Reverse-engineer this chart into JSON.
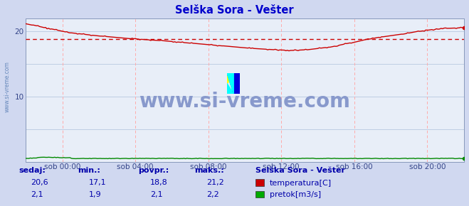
{
  "title": "Selška Sora - Vešter",
  "title_color": "#0000cc",
  "bg_color": "#d0d8f0",
  "plot_bg_color": "#e8eef8",
  "grid_color_h": "#b8c8e0",
  "grid_color_v": "#ffaaaa",
  "x_min": 0,
  "x_max": 288,
  "y_min": 0,
  "y_max": 22,
  "y_ticks": [
    10,
    20
  ],
  "x_tick_labels": [
    "sob 00:00",
    "sob 04:00",
    "sob 08:00",
    "sob 12:00",
    "sob 16:00",
    "sob 20:00"
  ],
  "x_tick_positions": [
    24,
    72,
    120,
    168,
    216,
    264
  ],
  "avg_line_y": 18.8,
  "avg_line_color": "#cc0000",
  "temp_line_color": "#cc0000",
  "flow_line_color": "#008800",
  "watermark_text": "www.si-vreme.com",
  "watermark_color": "#8899cc",
  "sidebar_text": "www.si-vreme.com",
  "sidebar_color": "#6688bb",
  "tick_color": "#334488",
  "footer_label_color": "#0000aa",
  "footer_value_color": "#0000aa",
  "legend_title": "Selška Sora - Vešter",
  "legend_title_color": "#0000aa",
  "legend_entries": [
    "temperatura[C]",
    "pretok[m3/s]"
  ],
  "legend_colors": [
    "#cc0000",
    "#00aa00"
  ],
  "stats_headers": [
    "sedaj:",
    "min.:",
    "povpr.:",
    "maks.:"
  ],
  "stats_temp": [
    "20,6",
    "17,1",
    "18,8",
    "21,2"
  ],
  "stats_flow": [
    "2,1",
    "1,9",
    "2,1",
    "2,2"
  ]
}
